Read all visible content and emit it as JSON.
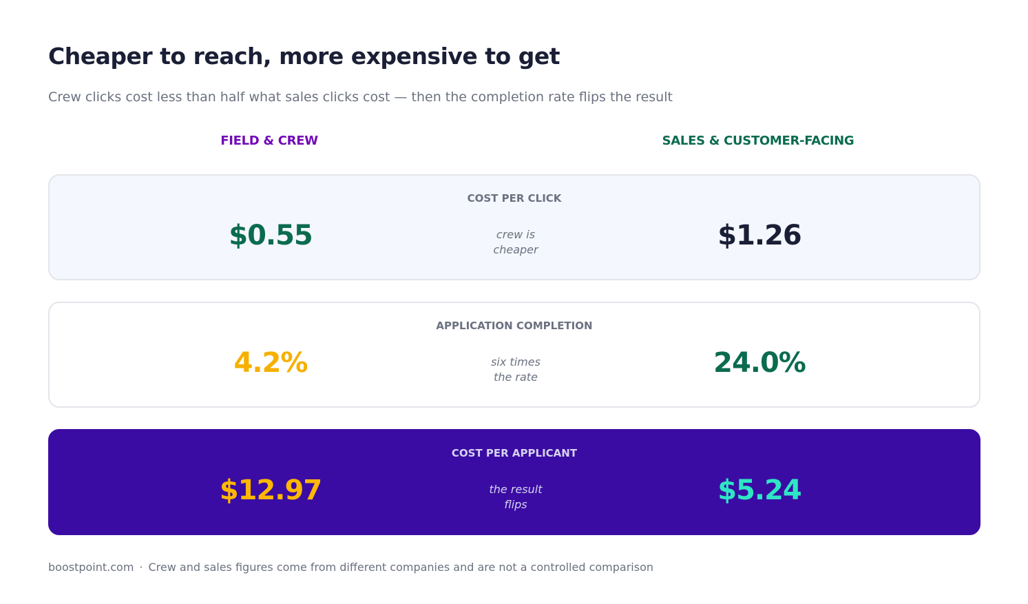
{
  "title": "Cheaper to reach, more expensive to get",
  "subtitle": "Crew clicks cost less than half what sales clicks cost — then the completion rate flips the result",
  "columns": {
    "left": {
      "label": "FIELD & CREW",
      "color": "#7209b7"
    },
    "right": {
      "label": "SALES & CUSTOMER-FACING",
      "color": "#0b6b4f"
    }
  },
  "chart_data": {
    "type": "table",
    "columns": [
      "FIELD & CREW",
      "SALES & CUSTOMER-FACING"
    ],
    "rows": [
      {
        "metric": "COST PER CLICK",
        "left": "$0.55",
        "right": "$1.26",
        "left_value": 0.55,
        "right_value": 1.26,
        "note_line1": "crew is",
        "note_line2": "cheaper",
        "left_color": "#0b6b4f",
        "right_color": "#1a1f36"
      },
      {
        "metric": "APPLICATION COMPLETION",
        "left": "4.2%",
        "right": "24.0%",
        "left_value": 4.2,
        "right_value": 24.0,
        "note_line1": "six times",
        "note_line2": "the rate",
        "left_color": "#f5b000",
        "right_color": "#0b6b4f"
      },
      {
        "metric": "COST PER APPLICANT",
        "left": "$12.97",
        "right": "$5.24",
        "left_value": 12.97,
        "right_value": 5.24,
        "note_line1": "the result",
        "note_line2": "flips",
        "left_color": "#ffb703",
        "right_color": "#2ee6c4"
      }
    ]
  },
  "footer": {
    "source": "boostpoint.com",
    "separator": "·",
    "disclaimer": "Crew and sales figures come from different companies and are not a controlled comparison"
  }
}
